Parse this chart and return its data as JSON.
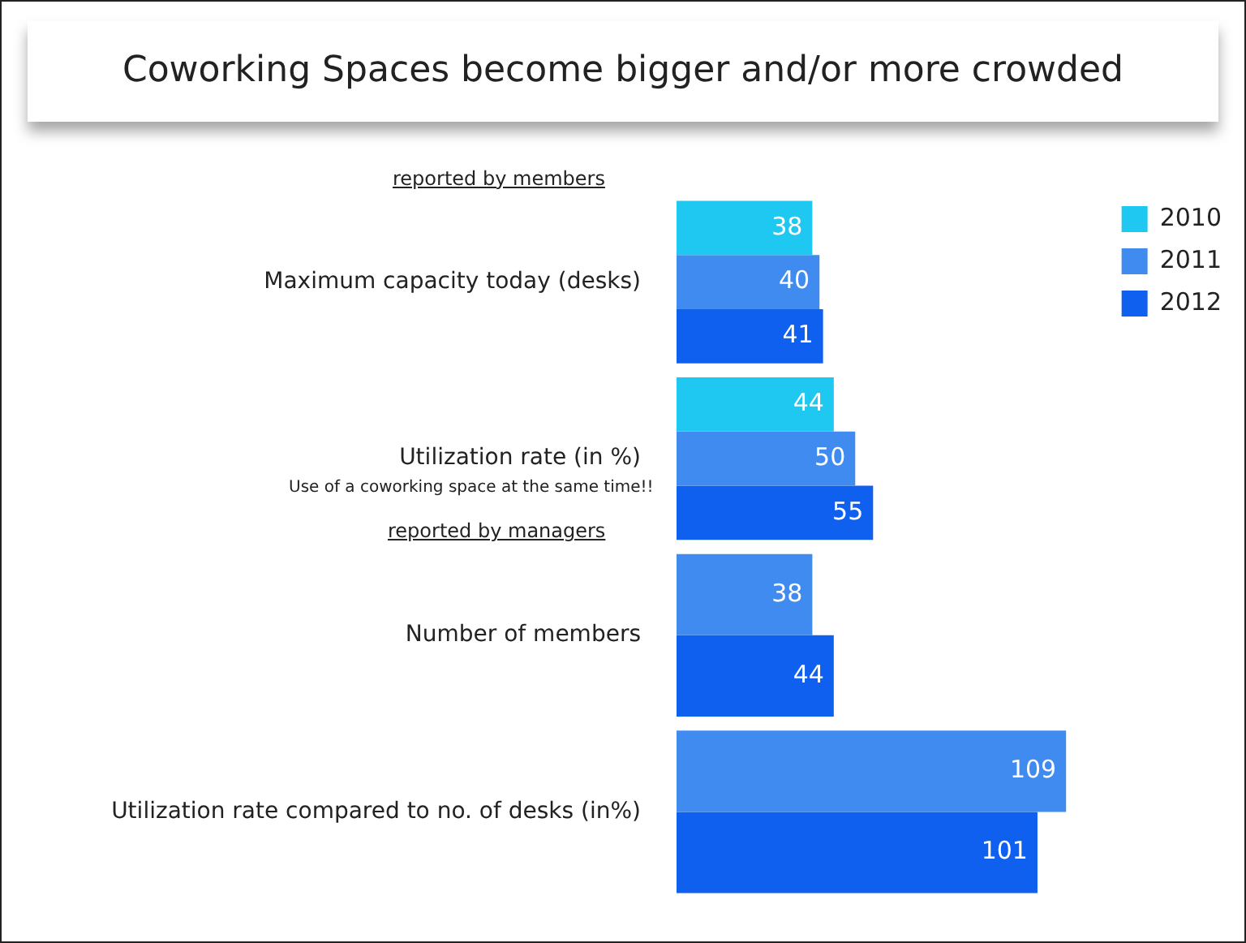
{
  "chart_data": {
    "type": "bar",
    "orientation": "horizontal",
    "title": "Coworking Spaces become bigger and/or more crowded",
    "categories": [
      "Maximum capacity today (desks)",
      "Utilization rate (in %)",
      "Number of members",
      "Utilization rate compared to no. of desks (in%)"
    ],
    "series": [
      {
        "name": "2010",
        "color": "#1ec8f0",
        "values": [
          38,
          44,
          null,
          null
        ]
      },
      {
        "name": "2011",
        "color": "#3f8bf0",
        "values": [
          40,
          50,
          38,
          109
        ]
      },
      {
        "name": "2012",
        "color": "#1060f0",
        "values": [
          41,
          55,
          44,
          101
        ]
      }
    ],
    "tick_labels": "y",
    "legend": "top right",
    "data_labels": true,
    "annotations": [
      "reported by members",
      "Use of a coworking space at the same time!!",
      "reported by managers"
    ]
  }
}
